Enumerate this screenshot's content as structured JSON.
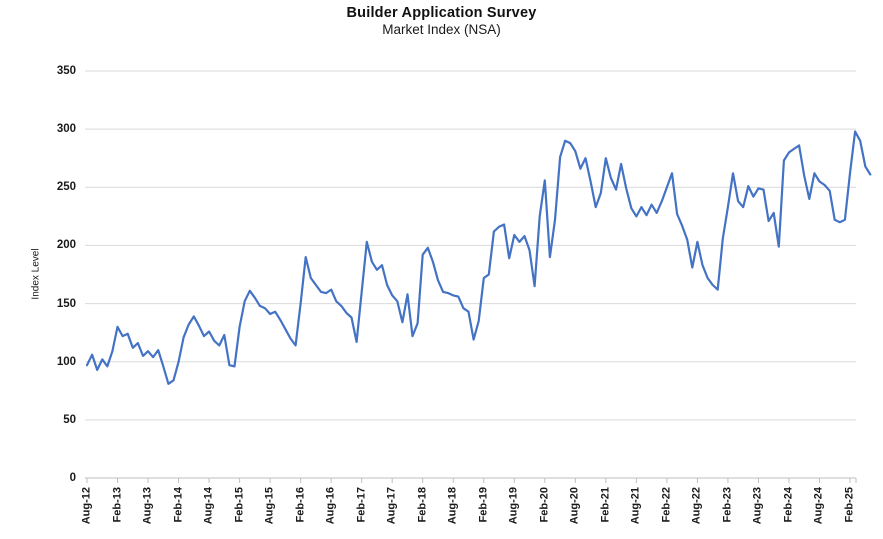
{
  "chart_data": {
    "type": "line",
    "title": "Builder Application Survey",
    "subtitle": "Market Index (NSA)",
    "ylabel": "Index Level",
    "ylim": [
      0,
      350
    ],
    "y_ticks": [
      0,
      50,
      100,
      150,
      200,
      250,
      300,
      350
    ],
    "grid": "horizontal",
    "legend": "none",
    "x_frequency": "monthly",
    "x_start": "Aug-2012",
    "x_end": "Jun-2025",
    "x_tick_interval_months": 6,
    "x_tick_labels": [
      "Aug-12",
      "Feb-13",
      "Aug-13",
      "Feb-14",
      "Aug-14",
      "Feb-15",
      "Aug-15",
      "Feb-16",
      "Aug-16",
      "Feb-17",
      "Aug-17",
      "Feb-18",
      "Aug-18",
      "Feb-19",
      "Aug-19",
      "Feb-20",
      "Aug-20",
      "Feb-21",
      "Aug-21",
      "Feb-22",
      "Aug-22",
      "Feb-23",
      "Aug-23",
      "Feb-24",
      "Aug-24",
      "Feb-25"
    ],
    "line_color": "#4472C4",
    "gridline_color": "#d9d9d9",
    "series": [
      {
        "name": "Market Index (NSA)",
        "values": [
          97,
          106,
          93,
          102,
          96,
          109,
          130,
          122,
          124,
          112,
          116,
          105,
          109,
          104,
          110,
          96,
          81,
          84,
          100,
          121,
          132,
          139,
          131,
          122,
          126,
          118,
          114,
          123,
          97,
          96,
          130,
          152,
          161,
          155,
          148,
          146,
          141,
          143,
          136,
          128,
          120,
          114,
          150,
          190,
          172,
          166,
          160,
          159,
          162,
          152,
          148,
          142,
          138,
          117,
          160,
          203,
          186,
          179,
          183,
          166,
          157,
          152,
          134,
          158,
          122,
          133,
          192,
          198,
          186,
          170,
          160,
          159,
          157,
          156,
          146,
          143,
          119,
          135,
          172,
          175,
          212,
          216,
          218,
          189,
          209,
          203,
          208,
          196,
          165,
          225,
          256,
          190,
          222,
          276,
          290,
          288,
          281,
          266,
          275,
          255,
          233,
          245,
          275,
          258,
          248,
          270,
          249,
          232,
          225,
          233,
          226,
          235,
          228,
          238,
          250,
          262,
          227,
          217,
          205,
          181,
          203,
          183,
          172,
          166,
          162,
          206,
          233,
          262,
          238,
          233,
          251,
          242,
          249,
          248,
          221,
          228,
          199,
          273,
          280,
          283,
          286,
          260,
          240,
          262,
          255,
          252,
          247,
          222,
          220,
          222,
          262,
          298,
          290,
          268,
          261
        ]
      }
    ]
  }
}
